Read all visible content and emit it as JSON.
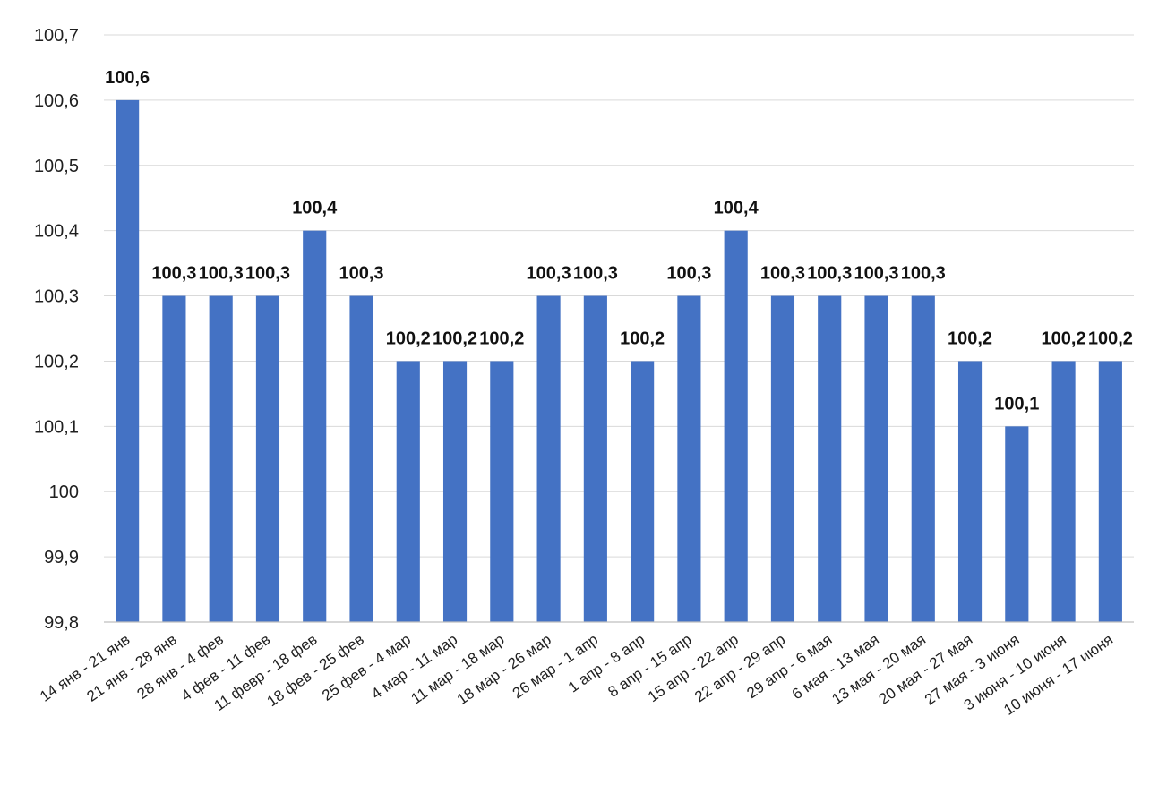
{
  "chart_data": {
    "type": "bar",
    "title": "",
    "xlabel": "",
    "ylabel": "",
    "ylim": [
      99.8,
      100.7
    ],
    "grid": true,
    "legend": "none",
    "bar_color": "#4472C4",
    "y_tick_values": [
      99.8,
      99.9,
      100.0,
      100.1,
      100.2,
      100.3,
      100.4,
      100.5,
      100.6,
      100.7
    ],
    "y_tick_labels": [
      "99,8",
      "99,9",
      "100",
      "100,1",
      "100,2",
      "100,3",
      "100,4",
      "100,5",
      "100,6",
      "100,7"
    ],
    "categories": [
      "14 янв - 21 янв",
      "21 янв - 28 янв",
      "28 янв - 4 фев",
      "4 фев - 11 фев",
      "11 февр - 18 фев",
      "18 фев - 25 фев",
      "25 фев - 4 мар",
      "4 мар - 11 мар",
      "11 мар - 18 мар",
      "18 мар - 26 мар",
      "26 мар - 1 апр",
      "1 апр - 8 апр",
      "8 апр - 15 апр",
      "15 апр - 22 апр",
      "22 апр - 29 апр",
      "29 апр - 6 мая",
      "6 мая - 13 мая",
      "13 мая - 20 мая",
      "20 мая - 27 мая",
      "27 мая - 3 июня",
      "3 июня - 10 июня",
      "10 июня - 17 июня"
    ],
    "values": [
      100.6,
      100.3,
      100.3,
      100.3,
      100.4,
      100.3,
      100.2,
      100.2,
      100.2,
      100.3,
      100.3,
      100.2,
      100.3,
      100.4,
      100.3,
      100.3,
      100.3,
      100.3,
      100.2,
      100.1,
      100.2,
      100.2
    ],
    "data_labels": [
      "100,6",
      "100,3",
      "100,3",
      "100,3",
      "100,4",
      "100,3",
      "100,2",
      "100,2",
      "100,2",
      "100,3",
      "100,3",
      "100,2",
      "100,3",
      "100,4",
      "100,3",
      "100,3",
      "100,3",
      "100,3",
      "100,2",
      "100,1",
      "100,2",
      "100,2"
    ]
  }
}
